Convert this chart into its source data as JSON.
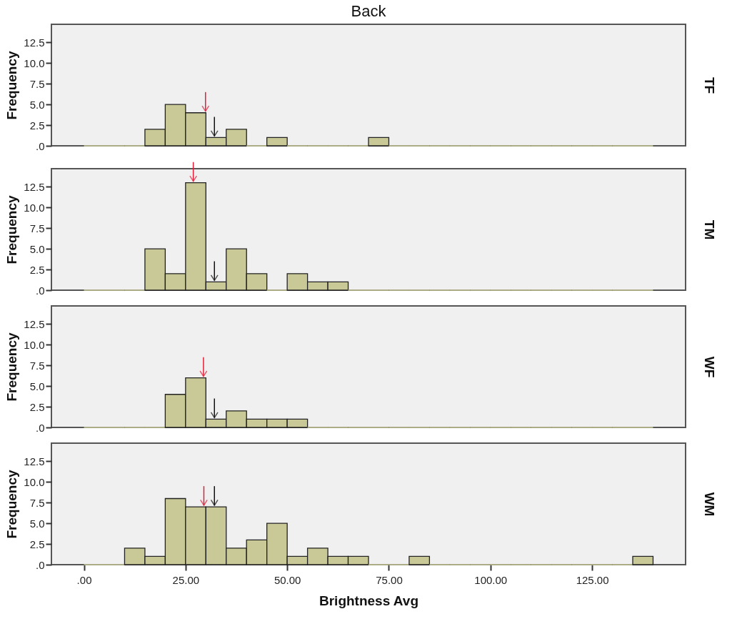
{
  "chart_data": [
    {
      "type": "histogram",
      "title": "Back",
      "ylabel": "Frequency",
      "y2label": "TF",
      "color": "#c9c997",
      "tick_labels": "y",
      "bins": [
        0,
        5,
        10,
        15,
        20,
        25,
        30,
        35,
        40,
        45,
        50,
        55,
        60,
        65,
        70,
        75,
        80,
        85,
        90,
        95,
        100,
        105,
        110,
        115,
        120,
        125,
        130,
        135,
        140
      ],
      "values": [
        0,
        0,
        0,
        2,
        5,
        4,
        1,
        2,
        0,
        1,
        0,
        0,
        0,
        0,
        1,
        0,
        0,
        0,
        0,
        0,
        0,
        0,
        0,
        0,
        0,
        0,
        0,
        0
      ],
      "xlim": [
        -8,
        148
      ],
      "ylim": [
        0,
        14.7
      ],
      "yticks": [
        {
          "value": 0,
          "label": ".0"
        },
        2.5,
        {
          "value": 5,
          "label": "5.0"
        },
        7.5,
        {
          "value": 10,
          "label": "10.0"
        },
        12.5
      ],
      "ref_lines": [
        {
          "axis": "x",
          "value": 29.9,
          "color": "#e0203a"
        },
        {
          "axis": "x",
          "value": 32.1,
          "color": "#111111"
        }
      ]
    },
    {
      "type": "histogram",
      "ylabel": "Frequency",
      "y2label": "TM",
      "color": "#c9c997",
      "tick_labels": "y",
      "bins": [
        0,
        5,
        10,
        15,
        20,
        25,
        30,
        35,
        40,
        45,
        50,
        55,
        60,
        65,
        70,
        75,
        80,
        85,
        90,
        95,
        100,
        105,
        110,
        115,
        120,
        125,
        130,
        135,
        140
      ],
      "values": [
        0,
        0,
        0,
        5,
        2,
        13,
        1,
        5,
        2,
        0,
        2,
        1,
        1,
        0,
        0,
        0,
        0,
        0,
        0,
        0,
        0,
        0,
        0,
        0,
        0,
        0,
        0,
        0
      ],
      "xlim": [
        -8,
        148
      ],
      "ylim": [
        0,
        14.7
      ],
      "yticks": [
        {
          "value": 0,
          "label": ".0"
        },
        2.5,
        {
          "value": 5,
          "label": "5.0"
        },
        7.5,
        {
          "value": 10,
          "label": "10.0"
        },
        12.5
      ],
      "ref_lines": [
        {
          "axis": "x",
          "value": 26.9,
          "color": "#e0203a"
        },
        {
          "axis": "x",
          "value": 32.1,
          "color": "#111111"
        }
      ]
    },
    {
      "type": "histogram",
      "ylabel": "Frequency",
      "y2label": "WF",
      "color": "#c9c997",
      "tick_labels": "y",
      "bins": [
        0,
        5,
        10,
        15,
        20,
        25,
        30,
        35,
        40,
        45,
        50,
        55,
        60,
        65,
        70,
        75,
        80,
        85,
        90,
        95,
        100,
        105,
        110,
        115,
        120,
        125,
        130,
        135,
        140
      ],
      "values": [
        0,
        0,
        0,
        0,
        4,
        6,
        1,
        2,
        1,
        1,
        1,
        0,
        0,
        0,
        0,
        0,
        0,
        0,
        0,
        0,
        0,
        0,
        0,
        0,
        0,
        0,
        0,
        0
      ],
      "xlim": [
        -8,
        148
      ],
      "ylim": [
        0,
        14.7
      ],
      "yticks": [
        {
          "value": 0,
          "label": ".0"
        },
        2.5,
        {
          "value": 5,
          "label": "5.0"
        },
        7.5,
        {
          "value": 10,
          "label": "10.0"
        },
        12.5
      ],
      "ref_lines": [
        {
          "axis": "x",
          "value": 29.4,
          "color": "#e0203a"
        },
        {
          "axis": "x",
          "value": 32.1,
          "color": "#111111"
        }
      ]
    },
    {
      "type": "histogram",
      "xlabel": "Brightness Avg",
      "ylabel": "Frequency",
      "y2label": "WM",
      "color": "#c9c997",
      "bins": [
        0,
        5,
        10,
        15,
        20,
        25,
        30,
        35,
        40,
        45,
        50,
        55,
        60,
        65,
        70,
        75,
        80,
        85,
        90,
        95,
        100,
        105,
        110,
        115,
        120,
        125,
        130,
        135,
        140
      ],
      "values": [
        0,
        0,
        2,
        1,
        8,
        7,
        7,
        2,
        3,
        5,
        1,
        2,
        1,
        1,
        0,
        0,
        1,
        0,
        0,
        0,
        0,
        0,
        0,
        0,
        0,
        0,
        0,
        1
      ],
      "xlim": [
        -8,
        148
      ],
      "ylim": [
        0,
        14.7
      ],
      "xticks": [
        {
          "value": 0,
          "label": ".00"
        },
        {
          "value": 25,
          "label": "25.00"
        },
        {
          "value": 50,
          "label": "50.00"
        },
        {
          "value": 75,
          "label": "75.00"
        },
        {
          "value": 100,
          "label": "100.00"
        },
        {
          "value": 125,
          "label": "125.00"
        }
      ],
      "yticks": [
        {
          "value": 0,
          "label": ".0"
        },
        2.5,
        {
          "value": 5,
          "label": "5.0"
        },
        7.5,
        {
          "value": 10,
          "label": "10.0"
        },
        12.5
      ],
      "ref_lines": [
        {
          "axis": "x",
          "value": 29.5,
          "color": "#e0203a"
        },
        {
          "axis": "x",
          "value": 32.1,
          "color": "#111111"
        }
      ]
    }
  ]
}
